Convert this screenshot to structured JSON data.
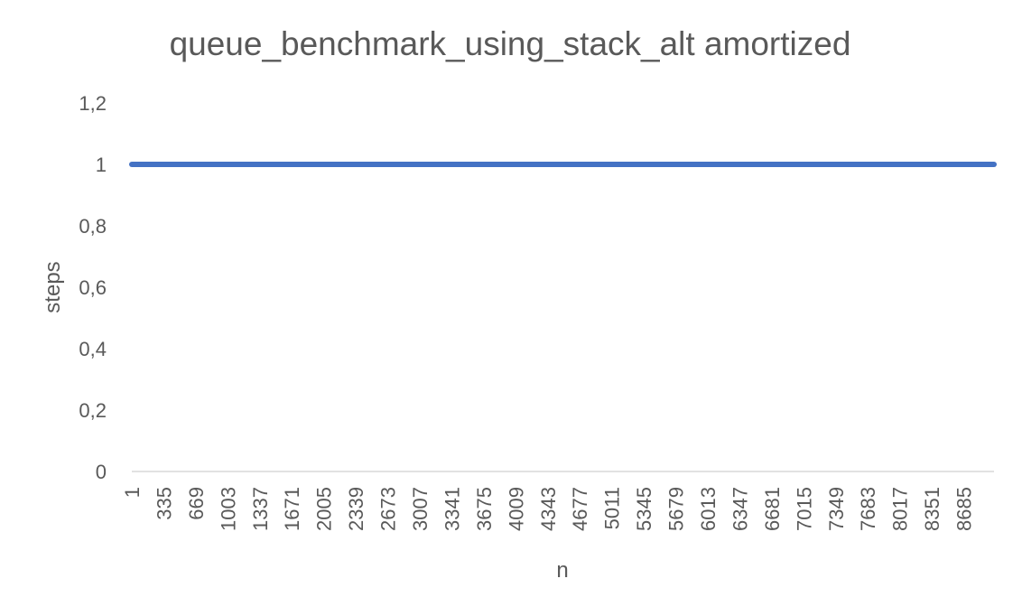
{
  "chart_data": {
    "type": "line",
    "title": "queue_benchmark_using_stack_alt amortized",
    "xlabel": "n",
    "ylabel": "steps",
    "categories": [
      "1",
      "335",
      "669",
      "1003",
      "1337",
      "1671",
      "2005",
      "2339",
      "2673",
      "3007",
      "3341",
      "3675",
      "4009",
      "4343",
      "4677",
      "5011",
      "5345",
      "5679",
      "6013",
      "6347",
      "6681",
      "7015",
      "7349",
      "7683",
      "8017",
      "8351",
      "8685"
    ],
    "x_range": [
      1,
      9000
    ],
    "x_tick_step": 334,
    "ylim": [
      0,
      1.2
    ],
    "y_ticks": [
      "0",
      "0,2",
      "0,4",
      "0,6",
      "0,8",
      "1",
      "1,2"
    ],
    "y_tick_values": [
      0,
      0.2,
      0.4,
      0.6,
      0.8,
      1,
      1.2
    ],
    "series": [
      {
        "values": [
          1,
          1,
          1,
          1,
          1,
          1,
          1,
          1,
          1,
          1,
          1,
          1,
          1,
          1,
          1,
          1,
          1,
          1,
          1,
          1,
          1,
          1,
          1,
          1,
          1,
          1,
          1
        ],
        "color": "#4472C4"
      }
    ],
    "grid": false,
    "legend": "none",
    "axis_color": "#D9D9D9",
    "text_color": "#595959"
  }
}
